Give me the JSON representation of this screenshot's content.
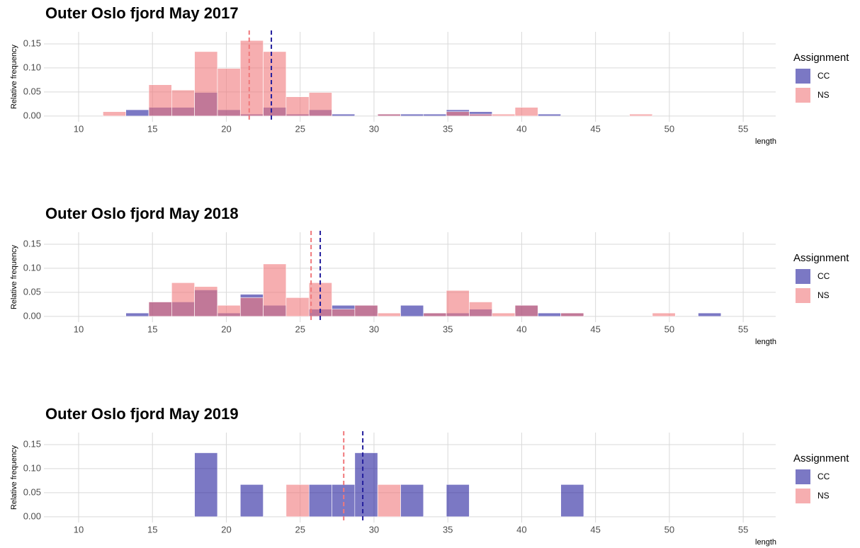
{
  "chart_data": [
    {
      "type": "histogram",
      "title": "Outer Oslo fjord May 2017",
      "x_label": "length",
      "y_label": "Relative frequency",
      "legend_title": "Assignment",
      "bins": [
        10.1,
        11.65,
        13.2,
        14.75,
        16.3,
        17.85,
        19.4,
        20.95,
        22.5,
        24.05,
        25.6,
        27.15,
        28.7,
        30.25,
        31.8,
        33.35,
        34.9,
        36.45,
        38.0,
        39.55,
        41.1,
        42.65,
        44.2,
        45.75,
        47.3,
        48.85,
        50.4,
        51.95,
        53.5,
        55.05
      ],
      "series": [
        {
          "name": "CC",
          "color": "#231e9d",
          "mean": 23.05,
          "values": [
            0,
            0,
            0.013,
            0.018,
            0.018,
            0.049,
            0.013,
            0.004,
            0.018,
            0.004,
            0.013,
            0.004,
            0,
            0.004,
            0.004,
            0.004,
            0.013,
            0.009,
            0,
            0,
            0.004,
            0,
            0,
            0,
            0,
            0,
            0,
            0,
            0
          ]
        },
        {
          "name": "NS",
          "color": "#f0787b",
          "mean": 21.55,
          "values": [
            0,
            0.009,
            0,
            0.065,
            0.054,
            0.134,
            0.099,
            0.157,
            0.134,
            0.04,
            0.049,
            0,
            0,
            0.004,
            0,
            0,
            0.009,
            0.004,
            0.004,
            0.018,
            0,
            0,
            0,
            0,
            0.004,
            0,
            0,
            0,
            0
          ]
        }
      ],
      "xlim": [
        7.65,
        57.2
      ],
      "ylim": [
        -0.012,
        0.175
      ],
      "xticks": [
        10,
        15,
        20,
        25,
        30,
        35,
        40,
        45,
        50,
        55
      ],
      "yticks": [
        {
          "value": 0,
          "label": "0.00"
        },
        {
          "value": 0.05,
          "label": "0.05"
        },
        {
          "value": 0.1,
          "label": "0.10"
        },
        {
          "value": 0.15,
          "label": "0.15"
        }
      ],
      "grid": true
    },
    {
      "type": "histogram",
      "title": "Outer Oslo fjord May 2018",
      "x_label": "length",
      "y_label": "Relative frequency",
      "legend_title": "Assignment",
      "bins": [
        10.1,
        11.65,
        13.2,
        14.75,
        16.3,
        17.85,
        19.4,
        20.95,
        22.5,
        24.05,
        25.6,
        27.15,
        28.7,
        30.25,
        31.8,
        33.35,
        34.9,
        36.45,
        38.0,
        39.55,
        41.1,
        42.65,
        44.2,
        45.75,
        47.3,
        48.85,
        50.4,
        51.95,
        53.5,
        55.05
      ],
      "series": [
        {
          "name": "CC",
          "color": "#231e9d",
          "mean": 26.36,
          "values": [
            0,
            0,
            0.007,
            0.03,
            0.03,
            0.055,
            0.007,
            0.046,
            0.023,
            0,
            0.015,
            0.023,
            0.023,
            0,
            0.023,
            0.007,
            0.007,
            0.015,
            0,
            0.023,
            0.007,
            0.007,
            0,
            0,
            0,
            0,
            0,
            0.007,
            0
          ]
        },
        {
          "name": "NS",
          "color": "#f0787b",
          "mean": 25.74,
          "values": [
            0,
            0,
            0,
            0.03,
            0.07,
            0.062,
            0.023,
            0.039,
            0.109,
            0.039,
            0.07,
            0.015,
            0.023,
            0.007,
            0,
            0.007,
            0.054,
            0.03,
            0.007,
            0.023,
            0,
            0.007,
            0,
            0,
            0,
            0.007,
            0,
            0,
            0
          ]
        }
      ],
      "xlim": [
        7.65,
        57.2
      ],
      "ylim": [
        -0.012,
        0.175
      ],
      "xticks": [
        10,
        15,
        20,
        25,
        30,
        35,
        40,
        45,
        50,
        55
      ],
      "yticks": [
        {
          "value": 0,
          "label": "0.00"
        },
        {
          "value": 0.05,
          "label": "0.05"
        },
        {
          "value": 0.1,
          "label": "0.10"
        },
        {
          "value": 0.15,
          "label": "0.15"
        }
      ],
      "grid": true
    },
    {
      "type": "histogram",
      "title": "Outer Oslo fjord May 2019",
      "x_label": "length",
      "y_label": "Relative frequency",
      "legend_title": "Assignment",
      "bins": [
        10.1,
        11.65,
        13.2,
        14.75,
        16.3,
        17.85,
        19.4,
        20.95,
        22.5,
        24.05,
        25.6,
        27.15,
        28.7,
        30.25,
        31.8,
        33.35,
        34.9,
        36.45,
        38.0,
        39.55,
        41.1,
        42.65,
        44.2,
        45.75,
        47.3,
        48.85,
        50.4,
        51.95,
        53.5,
        55.05
      ],
      "series": [
        {
          "name": "CC",
          "color": "#231e9d",
          "mean": 29.24,
          "values": [
            0,
            0,
            0,
            0,
            0,
            0.133,
            0,
            0.067,
            0,
            0,
            0.067,
            0.067,
            0.133,
            0,
            0.067,
            0,
            0.067,
            0,
            0,
            0,
            0,
            0.067,
            0,
            0,
            0,
            0,
            0,
            0,
            0
          ]
        },
        {
          "name": "NS",
          "color": "#f0787b",
          "mean": 27.95,
          "values": [
            0,
            0,
            0,
            0,
            0,
            0,
            0,
            0,
            0,
            0.067,
            0,
            0,
            0,
            0.067,
            0,
            0,
            0,
            0,
            0,
            0,
            0,
            0,
            0,
            0,
            0,
            0,
            0,
            0,
            0
          ]
        }
      ],
      "xlim": [
        7.65,
        57.2
      ],
      "ylim": [
        -0.012,
        0.175
      ],
      "xticks": [
        10,
        15,
        20,
        25,
        30,
        35,
        40,
        45,
        50,
        55
      ],
      "yticks": [
        {
          "value": 0,
          "label": "0.00"
        },
        {
          "value": 0.05,
          "label": "0.05"
        },
        {
          "value": 0.1,
          "label": "0.10"
        },
        {
          "value": 0.15,
          "label": "0.15"
        }
      ],
      "grid": true
    }
  ]
}
